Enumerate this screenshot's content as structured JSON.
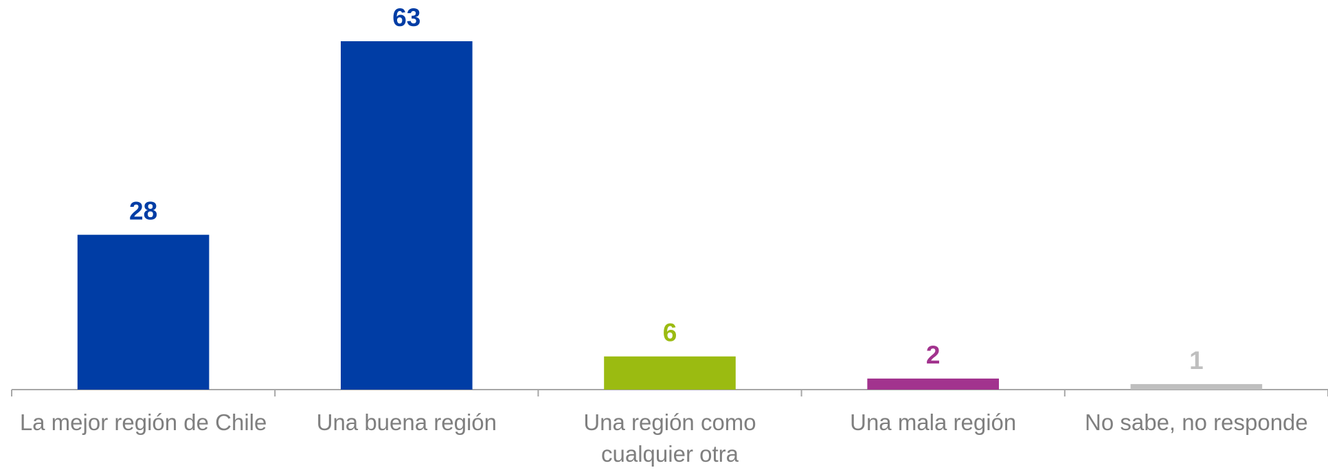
{
  "chart_data": {
    "type": "bar",
    "categories": [
      "La mejor región de Chile",
      "Una buena región",
      "Una región como cualquier otra",
      "Una mala región",
      "No sabe, no responde"
    ],
    "values": [
      28,
      63,
      6,
      2,
      1
    ],
    "colors": [
      "#003da5",
      "#003da5",
      "#9bbb11",
      "#a2338e",
      "#bfbfbf"
    ]
  }
}
